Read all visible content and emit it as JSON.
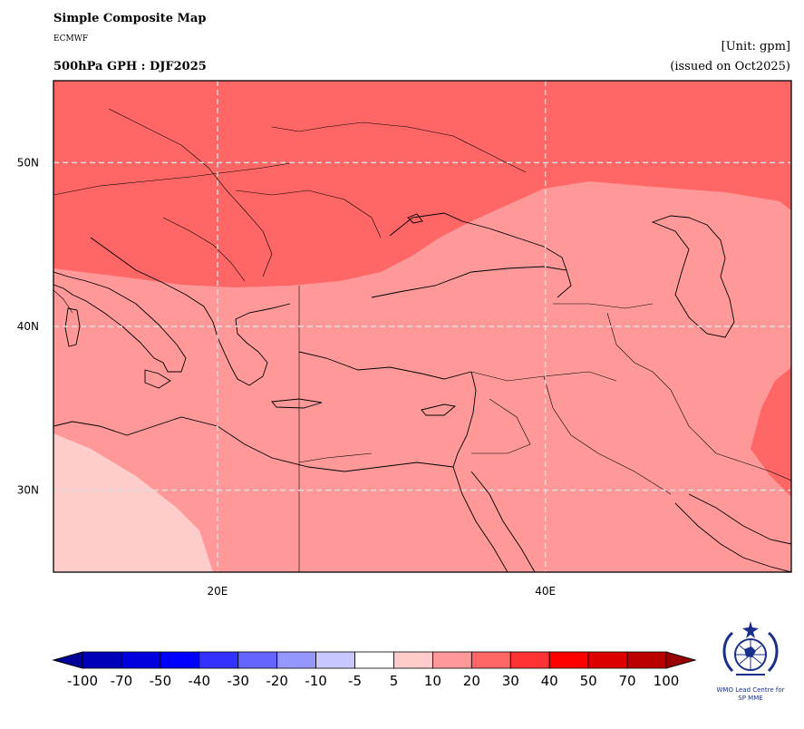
{
  "header": {
    "title": "Simple Composite Map",
    "source": "ECMWF",
    "variable": "500hPa GPH : DJF2025",
    "unit": "[Unit: gpm]",
    "issued": "(issued on Oct2025)"
  },
  "map": {
    "lon_range": [
      10,
      55
    ],
    "lat_range": [
      25,
      55
    ],
    "lon_ticks": [
      {
        "value": 20,
        "label": "20E"
      },
      {
        "value": 40,
        "label": "40E"
      }
    ],
    "lat_ticks": [
      {
        "value": 50,
        "label": "50N"
      },
      {
        "value": 40,
        "label": "40N"
      },
      {
        "value": 30,
        "label": "30N"
      }
    ],
    "gridlines": true,
    "anomaly_regions": [
      {
        "class": "20 to 30",
        "color": "#ff6666",
        "area": "north (Europe, Black Sea north, Caucasus north)"
      },
      {
        "class": "10 to 20",
        "color": "#ff9999",
        "area": "Mediterranean, Turkey, Middle East"
      },
      {
        "class": "5 to 10",
        "color": "#ffcccc",
        "area": "northwest Africa (southwest corner)"
      },
      {
        "class": "20 to 30",
        "color": "#ff6666",
        "area": "Iran southeast corner"
      }
    ]
  },
  "colorbar": {
    "labels": [
      "-100",
      "-70",
      "-50",
      "-40",
      "-30",
      "-20",
      "-10",
      "-5",
      "5",
      "10",
      "20",
      "30",
      "40",
      "50",
      "70",
      "100"
    ],
    "colors": [
      "#0000b8",
      "#0000dc",
      "#0000ff",
      "#3232ff",
      "#6464ff",
      "#9696ff",
      "#c8c8ff",
      "#ffffff",
      "#ffcccc",
      "#ff9999",
      "#ff6666",
      "#ff3333",
      "#ff0000",
      "#dd0000",
      "#bb0000"
    ],
    "under_color": "#000099",
    "over_color": "#990000"
  },
  "logo": {
    "line1": "WMO Lead Centre for",
    "line2": "SP MME"
  }
}
